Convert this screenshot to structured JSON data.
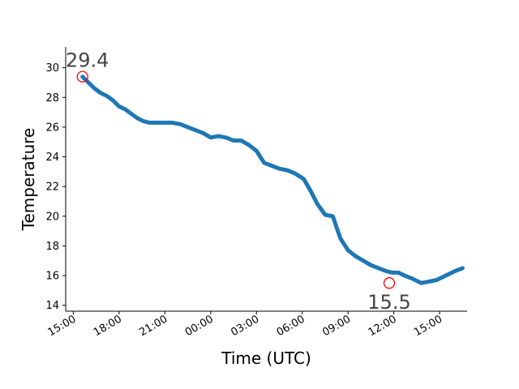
{
  "chart_data": {
    "type": "line",
    "title": "",
    "xlabel": "Time (UTC)",
    "ylabel": "Temperature",
    "x_tick_labels": [
      "15:00",
      "18:00",
      "21:00",
      "00:00",
      "03:00",
      "06:00",
      "09:00",
      "12:00",
      "15:00"
    ],
    "y_ticks": [
      14,
      16,
      18,
      20,
      22,
      24,
      26,
      28,
      30
    ],
    "ylim": [
      13.6,
      31.4
    ],
    "xlim_hours": [
      -0.5,
      25.8
    ],
    "grid": false,
    "line_color": "#1f77b4",
    "marker_color": "#ff0000",
    "annotation_color": "#444444",
    "series": [
      {
        "x_hours": [
          0.6,
          1.0,
          1.4,
          1.8,
          2.2,
          2.6,
          3.0,
          3.4,
          3.8,
          4.2,
          4.6,
          5.0,
          5.5,
          6.0,
          6.5,
          7.0,
          7.5,
          8.0,
          8.5,
          9.0,
          9.5,
          10.0,
          10.5,
          11.0,
          11.5,
          12.0,
          12.5,
          13.0,
          13.5,
          14.0,
          14.5,
          14.8,
          15.1,
          15.5,
          16.0,
          16.5,
          17.0,
          17.5,
          18.0,
          18.5,
          19.0,
          19.5,
          20.0,
          20.5,
          20.9,
          21.3,
          21.7,
          22.2,
          22.8,
          23.3,
          23.8,
          24.2,
          24.6,
          25.0,
          25.5
        ],
        "y": [
          29.4,
          29.0,
          28.6,
          28.3,
          28.1,
          27.8,
          27.4,
          27.2,
          26.9,
          26.6,
          26.4,
          26.3,
          26.3,
          26.3,
          26.3,
          26.2,
          26.0,
          25.8,
          25.6,
          25.3,
          25.4,
          25.3,
          25.1,
          25.1,
          24.8,
          24.4,
          23.6,
          23.4,
          23.2,
          23.1,
          22.9,
          22.7,
          22.5,
          21.8,
          20.8,
          20.1,
          20.0,
          18.5,
          17.7,
          17.3,
          17.0,
          16.7,
          16.5,
          16.3,
          16.2,
          16.2,
          16.0,
          15.8,
          15.5,
          15.6,
          15.7,
          15.9,
          16.1,
          16.3,
          16.5
        ]
      }
    ],
    "annotations": [
      {
        "label": "29.4",
        "x_hours": 0.6,
        "y": 29.4
      },
      {
        "label": "15.5",
        "x_hours": 20.7,
        "y": 15.5
      }
    ]
  }
}
